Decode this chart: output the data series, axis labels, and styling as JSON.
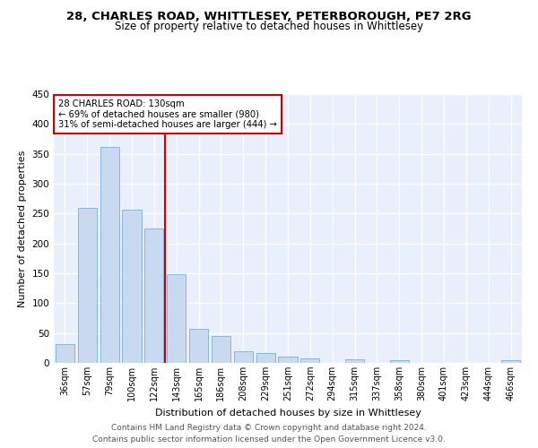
{
  "title1": "28, CHARLES ROAD, WHITTLESEY, PETERBOROUGH, PE7 2RG",
  "title2": "Size of property relative to detached houses in Whittlesey",
  "xlabel": "Distribution of detached houses by size in Whittlesey",
  "ylabel": "Number of detached properties",
  "categories": [
    "36sqm",
    "57sqm",
    "79sqm",
    "100sqm",
    "122sqm",
    "143sqm",
    "165sqm",
    "186sqm",
    "208sqm",
    "229sqm",
    "251sqm",
    "272sqm",
    "294sqm",
    "315sqm",
    "337sqm",
    "358sqm",
    "380sqm",
    "401sqm",
    "423sqm",
    "444sqm",
    "466sqm"
  ],
  "values": [
    32,
    260,
    362,
    256,
    225,
    148,
    57,
    45,
    20,
    16,
    10,
    7,
    0,
    6,
    0,
    4,
    0,
    0,
    0,
    0,
    4
  ],
  "bar_color": "#c8d9f0",
  "bar_edge_color": "#7ab0d8",
  "vline_color": "#cc0000",
  "annotation_text": "28 CHARLES ROAD: 130sqm\n← 69% of detached houses are smaller (980)\n31% of semi-detached houses are larger (444) →",
  "annotation_box_color": "white",
  "annotation_box_edge": "#cc0000",
  "footer1": "Contains HM Land Registry data © Crown copyright and database right 2024.",
  "footer2": "Contains public sector information licensed under the Open Government Licence v3.0.",
  "background_color": "#eaf0fb",
  "ylim": [
    0,
    450
  ],
  "yticks": [
    0,
    50,
    100,
    150,
    200,
    250,
    300,
    350,
    400,
    450
  ],
  "title1_fontsize": 9.5,
  "title2_fontsize": 8.5,
  "ylabel_fontsize": 8,
  "xlabel_fontsize": 8,
  "tick_fontsize": 7,
  "footer_fontsize": 6.5
}
